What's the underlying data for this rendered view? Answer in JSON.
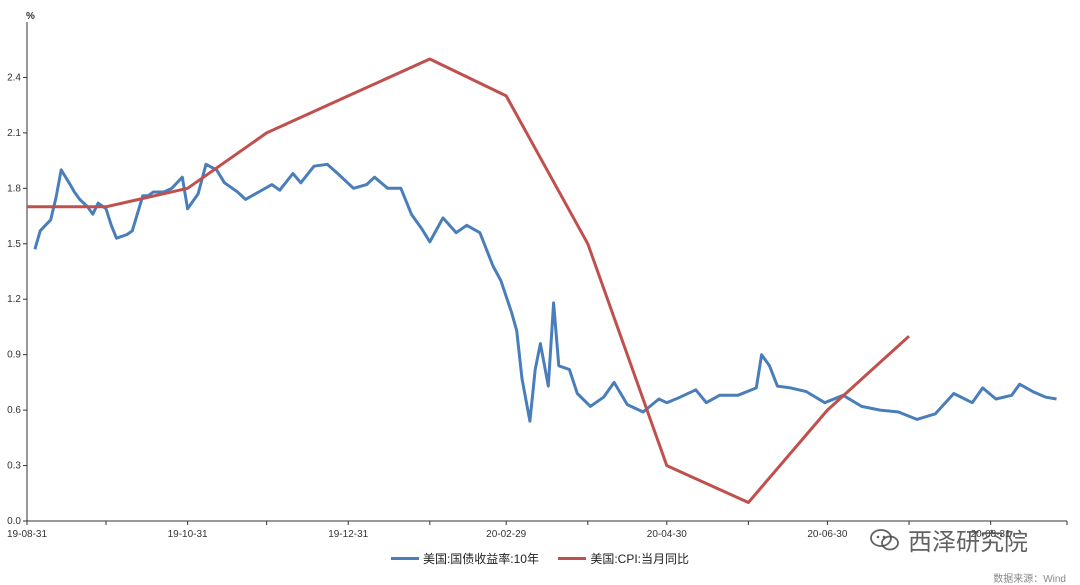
{
  "chart_data": {
    "type": "line",
    "unit_label": "%",
    "ylim": [
      0,
      2.7
    ],
    "y_ticks": [
      "0.0",
      "0.3",
      "0.6",
      "0.9",
      "1.2",
      "1.5",
      "1.8",
      "2.1",
      "2.4"
    ],
    "x_tick_labels": [
      "19-08-31",
      "19-10-31",
      "19-12-31",
      "20-02-29",
      "20-04-30",
      "20-06-30",
      "20-08-31"
    ],
    "series": [
      {
        "name": "美国:国债收益率:10年",
        "color": "#4a7ebb",
        "x": [
          "2019-09-03",
          "2019-09-05",
          "2019-09-09",
          "2019-09-11",
          "2019-09-13",
          "2019-09-16",
          "2019-09-18",
          "2019-09-20",
          "2019-09-23",
          "2019-09-25",
          "2019-09-27",
          "2019-09-30",
          "2019-10-02",
          "2019-10-04",
          "2019-10-08",
          "2019-10-10",
          "2019-10-14",
          "2019-10-16",
          "2019-10-18",
          "2019-10-22",
          "2019-10-25",
          "2019-10-29",
          "2019-10-31",
          "2019-11-04",
          "2019-11-07",
          "2019-11-11",
          "2019-11-14",
          "2019-11-19",
          "2019-11-22",
          "2019-11-27",
          "2019-12-02",
          "2019-12-05",
          "2019-12-10",
          "2019-12-13",
          "2019-12-18",
          "2019-12-23",
          "2019-12-27",
          "2020-01-02",
          "2020-01-07",
          "2020-01-10",
          "2020-01-15",
          "2020-01-20",
          "2020-01-24",
          "2020-01-28",
          "2020-01-31",
          "2020-02-05",
          "2020-02-10",
          "2020-02-14",
          "2020-02-19",
          "2020-02-24",
          "2020-02-27",
          "2020-03-02",
          "2020-03-04",
          "2020-03-06",
          "2020-03-09",
          "2020-03-11",
          "2020-03-13",
          "2020-03-16",
          "2020-03-18",
          "2020-03-20",
          "2020-03-24",
          "2020-03-27",
          "2020-04-01",
          "2020-04-06",
          "2020-04-10",
          "2020-04-15",
          "2020-04-21",
          "2020-04-27",
          "2020-04-30",
          "2020-05-05",
          "2020-05-11",
          "2020-05-15",
          "2020-05-20",
          "2020-05-27",
          "2020-06-03",
          "2020-06-05",
          "2020-06-08",
          "2020-06-11",
          "2020-06-16",
          "2020-06-22",
          "2020-06-29",
          "2020-07-06",
          "2020-07-13",
          "2020-07-20",
          "2020-07-27",
          "2020-08-03",
          "2020-08-10",
          "2020-08-17",
          "2020-08-24",
          "2020-08-28",
          "2020-09-02",
          "2020-09-08",
          "2020-09-11",
          "2020-09-16",
          "2020-09-21",
          "2020-09-25"
        ],
        "values": [
          1.47,
          1.57,
          1.63,
          1.75,
          1.9,
          1.83,
          1.78,
          1.74,
          1.7,
          1.66,
          1.72,
          1.69,
          1.6,
          1.53,
          1.55,
          1.57,
          1.76,
          1.76,
          1.78,
          1.78,
          1.8,
          1.86,
          1.69,
          1.77,
          1.93,
          1.9,
          1.83,
          1.78,
          1.74,
          1.78,
          1.82,
          1.79,
          1.88,
          1.83,
          1.92,
          1.93,
          1.88,
          1.8,
          1.82,
          1.86,
          1.8,
          1.8,
          1.66,
          1.58,
          1.51,
          1.64,
          1.56,
          1.6,
          1.56,
          1.38,
          1.3,
          1.13,
          1.03,
          0.77,
          0.54,
          0.82,
          0.96,
          0.73,
          1.18,
          0.84,
          0.82,
          0.69,
          0.62,
          0.67,
          0.75,
          0.63,
          0.59,
          0.66,
          0.64,
          0.67,
          0.71,
          0.64,
          0.68,
          0.68,
          0.72,
          0.9,
          0.84,
          0.73,
          0.72,
          0.7,
          0.64,
          0.68,
          0.62,
          0.6,
          0.59,
          0.55,
          0.58,
          0.69,
          0.64,
          0.72,
          0.66,
          0.68,
          0.74,
          0.7,
          0.67,
          0.66
        ]
      },
      {
        "name": "美国:CPI:当月同比",
        "color": "#c0504d",
        "x": [
          "2019-08-31",
          "2019-09-30",
          "2019-10-31",
          "2019-11-30",
          "2019-12-31",
          "2020-01-31",
          "2020-02-29",
          "2020-03-31",
          "2020-04-30",
          "2020-05-31",
          "2020-06-30",
          "2020-07-31"
        ],
        "values": [
          1.7,
          1.7,
          1.8,
          2.1,
          2.3,
          2.5,
          2.3,
          1.5,
          0.3,
          0.1,
          0.6,
          1.0
        ]
      }
    ],
    "legend_position": "bottom",
    "grid": false
  },
  "legend": {
    "item1": "美国:国债收益率:10年",
    "item2": "美国:CPI:当月同比"
  },
  "source_text": "数据来源：Wind",
  "watermark_text": "西泽研究院"
}
